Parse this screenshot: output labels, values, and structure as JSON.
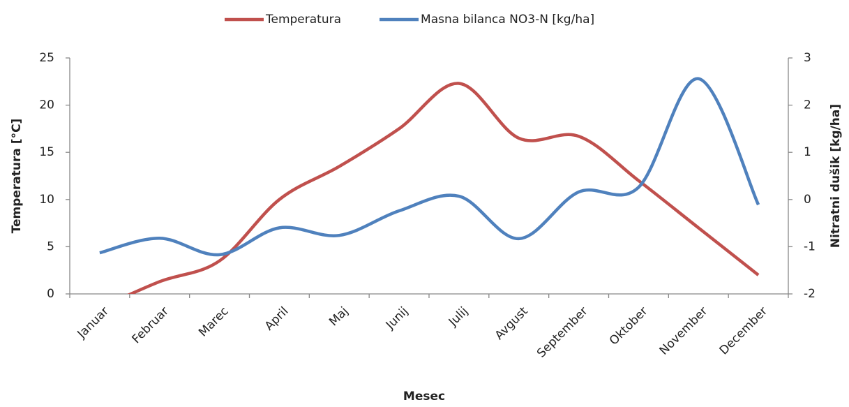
{
  "chart_data": {
    "type": "line",
    "x_label": "Mesec",
    "y_label": "Temperatura [°C]",
    "y2_label": "Nitratni dušik [kg/ha]",
    "categories": [
      "Januar",
      "Februar",
      "Marec",
      "April",
      "Maj",
      "Junij",
      "Julij",
      "Avgust",
      "September",
      "Oktober",
      "November",
      "December"
    ],
    "series": [
      {
        "name": "Temperatura",
        "color": "#c0504d",
        "values": [
          -1.5,
          1.3,
          3.5,
          10,
          13.5,
          17.5,
          22.3,
          16.5,
          16.7,
          12,
          7,
          2
        ]
      },
      {
        "name": "Masna bilanca NO3-N [kg/ha]",
        "color": "#4f81bd",
        "axis": "y2",
        "values": [
          -1.13,
          -0.82,
          -1.17,
          -0.6,
          -0.76,
          -0.24,
          0.07,
          -0.83,
          0.16,
          0.26,
          2.56,
          -0.11
        ]
      }
    ],
    "ylim": [
      0,
      25
    ],
    "yticks": [
      0,
      5,
      10,
      15,
      20,
      25
    ],
    "y2lim": [
      -2,
      3
    ],
    "y2ticks": [
      -2,
      -1,
      0,
      1,
      2,
      3
    ],
    "legend": "top"
  }
}
